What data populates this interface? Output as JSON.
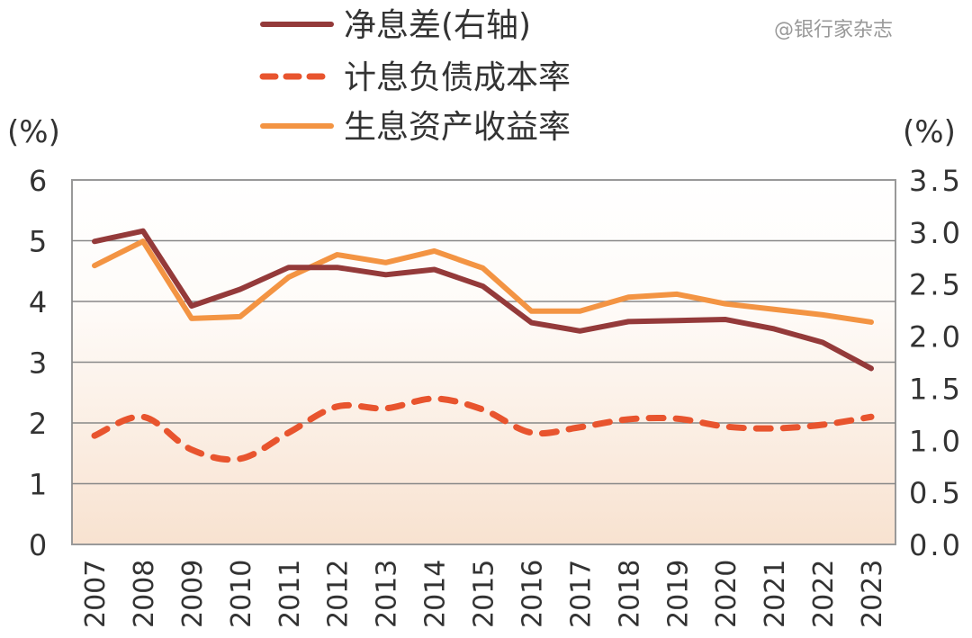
{
  "chart_data": {
    "type": "line",
    "title": "",
    "left_axis": {
      "label": "(%)",
      "ylim": [
        0,
        6
      ],
      "ticks": [
        "0",
        "1",
        "2",
        "3",
        "4",
        "5",
        "6"
      ]
    },
    "right_axis": {
      "label": "(%)",
      "ylim": [
        0,
        3.5
      ],
      "ticks": [
        "0.0",
        "0.5",
        "1.0",
        "1.5",
        "2.0",
        "2.5",
        "3.0",
        "3.5"
      ]
    },
    "categories": [
      "2007",
      "2008",
      "2009",
      "2010",
      "2011",
      "2012",
      "2013",
      "2014",
      "2015",
      "2016",
      "2017",
      "2018",
      "2019",
      "2020",
      "2021",
      "2022",
      "2023"
    ],
    "grid": true,
    "legend_placement": "top",
    "series": [
      {
        "name": "净息差(右轴)",
        "axis": "right",
        "style": "solid",
        "color": "#943a3a",
        "values": [
          2.91,
          3.01,
          2.29,
          2.45,
          2.66,
          2.66,
          2.59,
          2.64,
          2.48,
          2.13,
          2.05,
          2.14,
          2.15,
          2.16,
          2.07,
          1.94,
          1.69
        ]
      },
      {
        "name": "计息负债成本率",
        "axis": "left",
        "style": "dashed",
        "color": "#e8542e",
        "values": [
          1.79,
          2.1,
          1.56,
          1.41,
          1.84,
          2.27,
          2.24,
          2.4,
          2.22,
          1.84,
          1.93,
          2.06,
          2.07,
          1.94,
          1.91,
          1.97,
          2.1
        ]
      },
      {
        "name": "生息资产收益率",
        "axis": "left",
        "style": "solid",
        "color": "#f39443",
        "values": [
          4.59,
          4.99,
          3.72,
          3.75,
          4.4,
          4.77,
          4.64,
          4.83,
          4.55,
          3.84,
          3.84,
          4.07,
          4.12,
          3.96,
          3.87,
          3.78,
          3.66
        ]
      }
    ]
  },
  "watermark": "@银行家杂志"
}
